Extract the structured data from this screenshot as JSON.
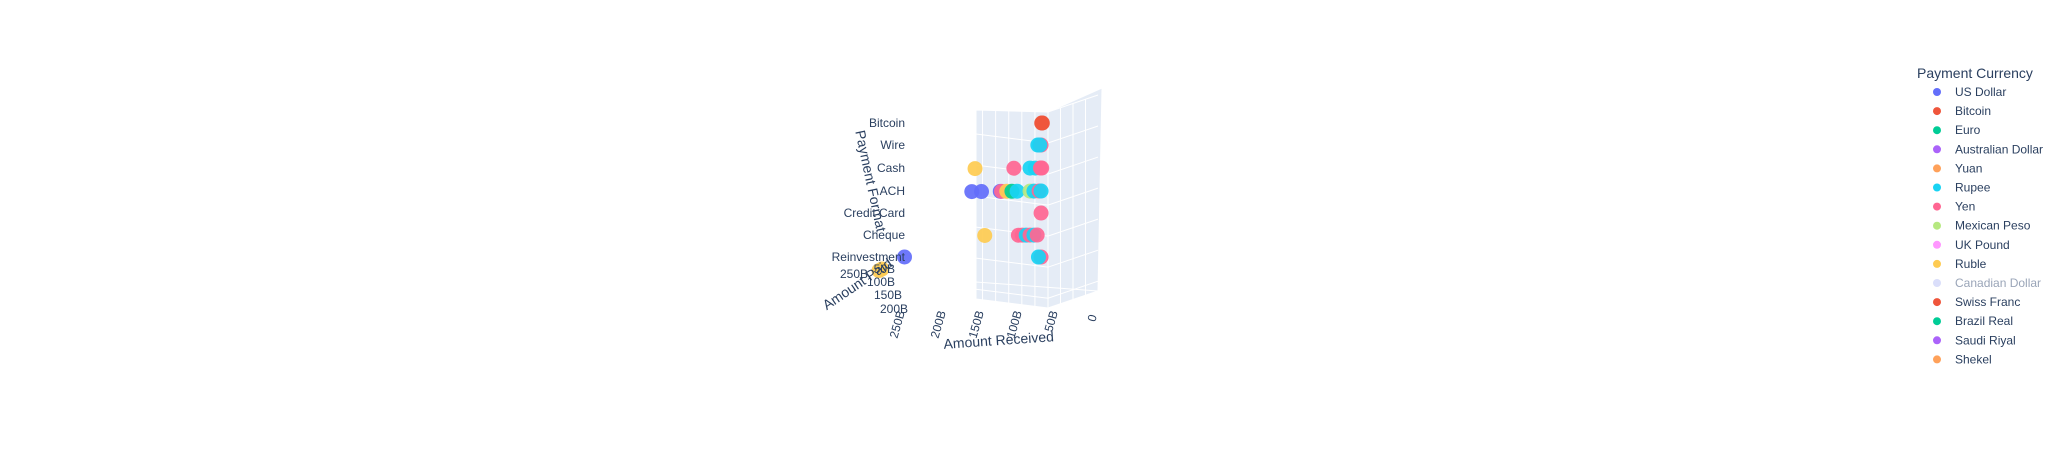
{
  "chart_data": {
    "type": "scatter",
    "dimensions": 3,
    "title": "",
    "axes": {
      "x": {
        "title": "Amount Received",
        "ticks": [
          "0",
          "50B",
          "100B",
          "150B",
          "200B",
          "250B"
        ],
        "range": [
          0,
          275
        ]
      },
      "y": {
        "title": "Amount Paid",
        "ticks": [
          "50B",
          "100B",
          "150B",
          "200B",
          "250B"
        ],
        "range": [
          0,
          275
        ]
      },
      "z": {
        "title": "Payment Format",
        "ticks": [
          "Reinvestment",
          "Cheque",
          "Credit Card",
          "ACH",
          "Cash",
          "Wire",
          "Bitcoin"
        ]
      }
    },
    "legend": {
      "title": "Payment Currency",
      "placement": "right",
      "items": [
        {
          "name": "US Dollar",
          "color": "#636efa"
        },
        {
          "name": "Bitcoin",
          "color": "#ef553b"
        },
        {
          "name": "Euro",
          "color": "#00cc96"
        },
        {
          "name": "Australian Dollar",
          "color": "#ab63fa"
        },
        {
          "name": "Yuan",
          "color": "#ffa15a"
        },
        {
          "name": "Rupee",
          "color": "#19d3f3"
        },
        {
          "name": "Yen",
          "color": "#ff6692"
        },
        {
          "name": "Mexican Peso",
          "color": "#b6e880"
        },
        {
          "name": "UK Pound",
          "color": "#ff97ff"
        },
        {
          "name": "Ruble",
          "color": "#fecb52"
        },
        {
          "name": "Canadian Dollar",
          "color": "#b5bdf5",
          "hidden": true
        },
        {
          "name": "Swiss Franc",
          "color": "#ef553b"
        },
        {
          "name": "Brazil Real",
          "color": "#00cc96"
        },
        {
          "name": "Saudi Riyal",
          "color": "#ab63fa"
        },
        {
          "name": "Shekel",
          "color": "#ffa15a"
        }
      ]
    },
    "points": [
      {
        "currency": "Bitcoin",
        "format": "Bitcoin",
        "received": 1,
        "paid": 1
      },
      {
        "currency": "Bitcoin",
        "format": "Bitcoin",
        "received": 2,
        "paid": 3
      },
      {
        "currency": "Rupee",
        "format": "Wire",
        "received": 8,
        "paid": 5
      },
      {
        "currency": "Yen",
        "format": "Wire",
        "received": 3,
        "paid": 2
      },
      {
        "currency": "Rupee",
        "format": "Wire",
        "received": 5,
        "paid": 4
      },
      {
        "currency": "Ruble",
        "format": "Cash",
        "received": 105,
        "paid": 100
      },
      {
        "currency": "Yen",
        "format": "Cash",
        "received": 45,
        "paid": 40
      },
      {
        "currency": "Rupee",
        "format": "Cash",
        "received": 20,
        "paid": 18
      },
      {
        "currency": "Rupee",
        "format": "Cash",
        "received": 12,
        "paid": 10
      },
      {
        "currency": "Yen",
        "format": "Cash",
        "received": 4,
        "paid": 3
      },
      {
        "currency": "Yen",
        "format": "Cash",
        "received": 2,
        "paid": 1
      },
      {
        "currency": "US Dollar",
        "format": "ACH",
        "received": 260,
        "paid": 255
      },
      {
        "currency": "US Dollar",
        "format": "ACH",
        "received": 110,
        "paid": 105
      },
      {
        "currency": "US Dollar",
        "format": "ACH",
        "received": 95,
        "paid": 90
      },
      {
        "currency": "US Dollar",
        "format": "ACH",
        "received": 66,
        "paid": 62
      },
      {
        "currency": "Yen",
        "format": "ACH",
        "received": 64,
        "paid": 60
      },
      {
        "currency": "Ruble",
        "format": "ACH",
        "received": 56,
        "paid": 52
      },
      {
        "currency": "Euro",
        "format": "ACH",
        "received": 48,
        "paid": 44
      },
      {
        "currency": "Rupee",
        "format": "ACH",
        "received": 40,
        "paid": 36
      },
      {
        "currency": "Mexican Peso",
        "format": "ACH",
        "received": 20,
        "paid": 18
      },
      {
        "currency": "Rupee",
        "format": "ACH",
        "received": 14,
        "paid": 12
      },
      {
        "currency": "Yen",
        "format": "ACH",
        "received": 6,
        "paid": 5
      },
      {
        "currency": "Rupee",
        "format": "ACH",
        "received": 3,
        "paid": 2
      },
      {
        "currency": "Yen",
        "format": "Credit Card",
        "received": 3,
        "paid": 2
      },
      {
        "currency": "Ruble",
        "format": "Cheque",
        "received": 90,
        "paid": 88
      },
      {
        "currency": "Yen",
        "format": "Cheque",
        "received": 38,
        "paid": 35
      },
      {
        "currency": "Yen",
        "format": "Cheque",
        "received": 32,
        "paid": 30
      },
      {
        "currency": "Rupee",
        "format": "Cheque",
        "received": 26,
        "paid": 24
      },
      {
        "currency": "Yen",
        "format": "Cheque",
        "received": 20,
        "paid": 18
      },
      {
        "currency": "Rupee",
        "format": "Cheque",
        "received": 14,
        "paid": 12
      },
      {
        "currency": "Yen",
        "format": "Cheque",
        "received": 9,
        "paid": 8
      },
      {
        "currency": "Yen",
        "format": "Reinvestment",
        "received": 3,
        "paid": 2
      },
      {
        "currency": "Rupee",
        "format": "Reinvestment",
        "received": 7,
        "paid": 6
      },
      {
        "currency": "Ruble",
        "format": "Reinvestment",
        "received": 1,
        "paid": 270
      },
      {
        "currency": "Ruble",
        "format": "Reinvestment",
        "received": 1,
        "paid": 272
      }
    ]
  }
}
